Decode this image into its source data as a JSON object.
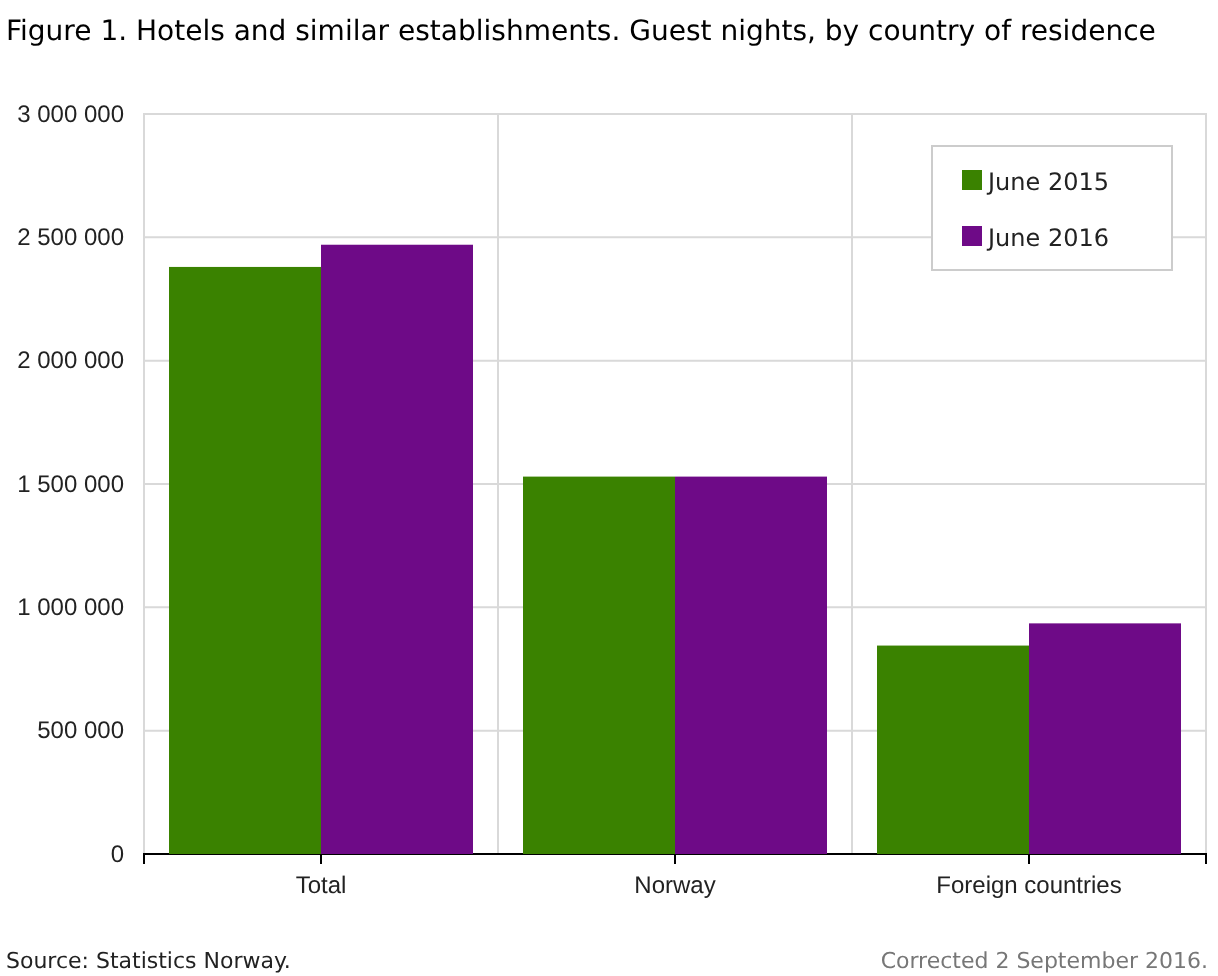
{
  "chart_data": {
    "type": "bar",
    "title": "Figure 1. Hotels and similar establishments. Guest nights, by country of residence",
    "categories": [
      "Total",
      "Norway",
      "Foreign countries"
    ],
    "series": [
      {
        "name": "June 2015",
        "color": "#3a8200",
        "values": [
          2380000,
          1530000,
          845000
        ]
      },
      {
        "name": "June 2016",
        "color": "#6e0a87",
        "values": [
          2470000,
          1530000,
          935000
        ]
      }
    ],
    "ylim": [
      0,
      3000000
    ],
    "yticks": [
      {
        "value": 0,
        "label": "0"
      },
      {
        "value": 500000,
        "label": "500 000"
      },
      {
        "value": 1000000,
        "label": "1 000 000"
      },
      {
        "value": 1500000,
        "label": "1 500 000"
      },
      {
        "value": 2000000,
        "label": "2 000 000"
      },
      {
        "value": 2500000,
        "label": "2 500 000"
      },
      {
        "value": 3000000,
        "label": "3 000 000"
      }
    ],
    "grid": true,
    "legend": "top right",
    "annotations": [
      "Source: Statistics Norway.",
      "Corrected 2 September 2016."
    ]
  }
}
